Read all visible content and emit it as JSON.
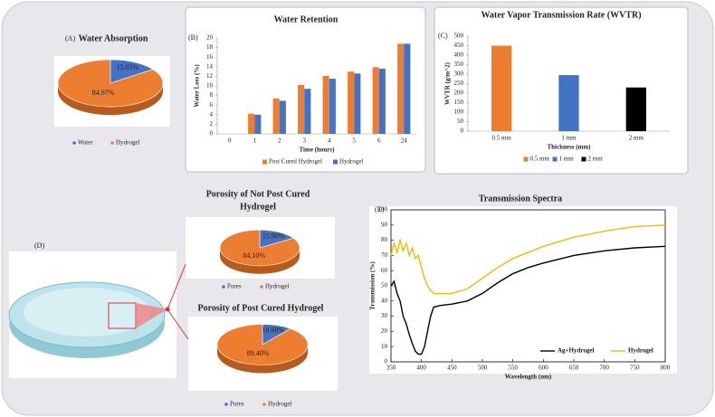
{
  "chart_data": [
    {
      "type": "pie",
      "label": "(A)",
      "title": [
        "Water Absorption"
      ],
      "categories": [
        "Water",
        "Hydrogel"
      ],
      "values": [
        15.03,
        84.97
      ],
      "value_labels": [
        "15.03%",
        "84.97%"
      ],
      "colors": [
        "#4472c4",
        "#ed7d31"
      ]
    },
    {
      "type": "bar",
      "label": "(B)",
      "title": "Water Retention",
      "x_label": "Time (hours)",
      "y_label": "Water Loss (%)",
      "categories": [
        "0",
        "1",
        "2",
        "3",
        "4",
        "5",
        "6",
        "24"
      ],
      "series": [
        {
          "name": "Post Cured Hydrogel",
          "color": "#ed7d31",
          "values": [
            0,
            4.2,
            7.4,
            10.2,
            12.1,
            13,
            13.9,
            18.8
          ]
        },
        {
          "name": "Hydrogel",
          "color": "#4472c4",
          "values": [
            0,
            4,
            6.9,
            9.4,
            11.5,
            12.6,
            13.6,
            18.8
          ]
        }
      ],
      "ylim": [
        0,
        20
      ],
      "yticks": [
        0,
        2,
        4,
        6,
        8,
        10,
        12,
        14,
        16,
        18,
        20
      ]
    },
    {
      "type": "bar",
      "label": "(C)",
      "title": "Water Vapor Transmission Rate (WVTR)",
      "x_label": "Thickness (mm)",
      "y_label": "WVTR (g/m^2)",
      "categories": [
        "0.5 mm",
        "1 mm",
        "2 mm"
      ],
      "series": [
        {
          "values": [
            450,
            295,
            230
          ],
          "colors": [
            "#ed7d31",
            "#4472c4",
            "#000000"
          ]
        }
      ],
      "ylim": [
        0,
        500
      ],
      "yticks": [
        0,
        50,
        100,
        150,
        200,
        250,
        300,
        350,
        400,
        450,
        500
      ]
    },
    {
      "type": "pie",
      "label": "(D)",
      "title": [
        "Porosity of Not Post Cured",
        "Hydrogel"
      ],
      "categories": [
        "Pores",
        "Hydrogel"
      ],
      "values": [
        15.9,
        84.1
      ],
      "value_labels": [
        "15.90%",
        "84.10%"
      ],
      "colors": [
        "#4472c4",
        "#ed7d31"
      ]
    },
    {
      "type": "pie",
      "title": [
        "Porosity of Post Cured Hydrogel"
      ],
      "categories": [
        "Pores",
        "Hydrogel"
      ],
      "values": [
        10.6,
        89.4
      ],
      "value_labels": [
        "10.60%",
        "89.40%"
      ],
      "colors": [
        "#4472c4",
        "#ed7d31"
      ]
    },
    {
      "type": "line",
      "label": "(E)",
      "title": "Transmission Spectra",
      "x_label": "Wavelength (nm)",
      "y_label": "Transmission (%)",
      "x": [
        350,
        355,
        360,
        365,
        370,
        375,
        380,
        385,
        390,
        395,
        400,
        405,
        410,
        415,
        420,
        430,
        450,
        475,
        500,
        525,
        550,
        575,
        600,
        650,
        700,
        750,
        800
      ],
      "series": [
        {
          "name": "Ag+Hydrogel",
          "color": "#000000",
          "values": [
            50,
            53,
            45,
            40,
            30,
            25,
            18,
            12,
            7,
            5,
            5,
            10,
            20,
            30,
            36,
            37,
            38,
            40,
            45,
            52,
            58,
            62,
            65,
            70,
            73,
            75,
            76
          ]
        },
        {
          "name": "Hydrogel",
          "color": "#f5b800",
          "values": [
            70,
            78,
            72,
            80,
            73,
            78,
            70,
            75,
            68,
            70,
            62,
            55,
            50,
            47,
            45,
            45,
            45,
            48,
            55,
            62,
            68,
            72,
            76,
            82,
            86,
            89,
            90
          ]
        }
      ],
      "xlim": [
        350,
        800
      ],
      "xticks": [
        350,
        400,
        450,
        500,
        550,
        600,
        650,
        700,
        750,
        800
      ],
      "ylim": [
        0,
        100
      ],
      "yticks": [
        0,
        10,
        20,
        30,
        40,
        50,
        60,
        70,
        80,
        90,
        100
      ]
    }
  ]
}
